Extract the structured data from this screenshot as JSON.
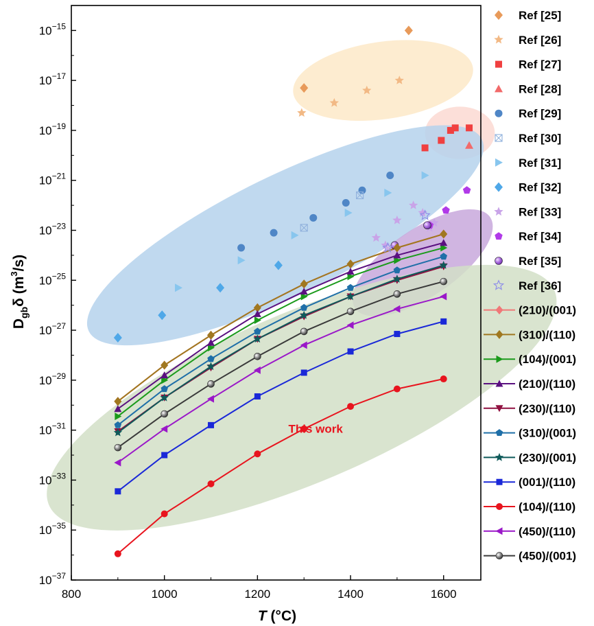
{
  "chart_data": {
    "type": "scatter",
    "title": "",
    "xlabel_italic": "T",
    "xlabel_rest": " (°C)",
    "ylabel_main": "D",
    "ylabel_sub": "gb",
    "ylabel_delta": "δ (m",
    "ylabel_sup": "3",
    "ylabel_end": "/s)",
    "xlim": [
      800,
      1680
    ],
    "ylim_log10": [
      -37,
      -14
    ],
    "xticks": [
      800,
      1000,
      1200,
      1400,
      1600
    ],
    "yticks": [
      {
        "base": "10",
        "exp": "−15",
        "value": -15
      },
      {
        "base": "10",
        "exp": "−17",
        "value": -17
      },
      {
        "base": "10",
        "exp": "−19",
        "value": -19
      },
      {
        "base": "10",
        "exp": "−21",
        "value": -21
      },
      {
        "base": "10",
        "exp": "−23",
        "value": -23
      },
      {
        "base": "10",
        "exp": "−25",
        "value": -25
      },
      {
        "base": "10",
        "exp": "−27",
        "value": -27
      },
      {
        "base": "10",
        "exp": "−29",
        "value": -29
      },
      {
        "base": "10",
        "exp": "−31",
        "value": -31
      },
      {
        "base": "10",
        "exp": "−33",
        "value": -33
      },
      {
        "base": "10",
        "exp": "−35",
        "value": -35
      },
      {
        "base": "10",
        "exp": "−37",
        "value": -37
      }
    ],
    "annotation": {
      "text": "This work",
      "x": 1325,
      "y": -31.1,
      "color": "#e8141e"
    },
    "ellipses": [
      {
        "name": "orange-region",
        "cx": 1470,
        "cy": -17.0,
        "rx": 195,
        "ry": 1.55,
        "rot_deg": -8,
        "color": "#fde9c8"
      },
      {
        "name": "pink-region",
        "cx": 1635,
        "cy": -19.1,
        "rx": 75,
        "ry": 1.05,
        "rot_deg": 0,
        "color": "#fbd9d2"
      },
      {
        "name": "blue-region",
        "cx": 1260,
        "cy": -23.2,
        "rx": 470,
        "ry": 2.4,
        "rot_deg": -26,
        "color": "#b5d2ec"
      },
      {
        "name": "purple-region",
        "cx": 1555,
        "cy": -24.3,
        "rx": 175,
        "ry": 1.35,
        "rot_deg": -34,
        "color": "#c8a8dc"
      },
      {
        "name": "green-region",
        "cx": 1295,
        "cy": -29.7,
        "rx": 590,
        "ry": 3.4,
        "rot_deg": -23,
        "color": "#d2dfc7"
      }
    ],
    "ref_series": [
      {
        "name": "Ref [25]",
        "marker": "diamond",
        "color": "#e89a5a",
        "points": [
          [
            1300,
            -17.3
          ],
          [
            1525,
            -15.0
          ]
        ]
      },
      {
        "name": "Ref [26]",
        "marker": "star",
        "color": "#f2b985",
        "points": [
          [
            1295,
            -18.3
          ],
          [
            1365,
            -17.9
          ],
          [
            1435,
            -17.4
          ],
          [
            1505,
            -17.0
          ]
        ]
      },
      {
        "name": "Ref [27]",
        "marker": "square",
        "color": "#f04040",
        "points": [
          [
            1560,
            -19.7
          ],
          [
            1595,
            -19.4
          ],
          [
            1615,
            -19.0
          ],
          [
            1625,
            -18.9
          ],
          [
            1655,
            -18.9
          ]
        ]
      },
      {
        "name": "Ref [28]",
        "marker": "triangle-up",
        "color": "#f26a6a",
        "points": [
          [
            1655,
            -19.6
          ]
        ]
      },
      {
        "name": "Ref [29]",
        "marker": "circle",
        "color": "#4f86c6",
        "points": [
          [
            1165,
            -23.7
          ],
          [
            1235,
            -23.1
          ],
          [
            1320,
            -22.5
          ],
          [
            1390,
            -21.9
          ],
          [
            1425,
            -21.4
          ],
          [
            1485,
            -20.8
          ]
        ]
      },
      {
        "name": "Ref [30]",
        "marker": "crossed-square",
        "color": "#8fb0dc",
        "points": [
          [
            1300,
            -22.9
          ],
          [
            1420,
            -21.6
          ]
        ]
      },
      {
        "name": "Ref [31]",
        "marker": "triangle-right",
        "color": "#88c6ee",
        "points": [
          [
            1030,
            -25.3
          ],
          [
            1165,
            -24.2
          ],
          [
            1280,
            -23.2
          ],
          [
            1395,
            -22.3
          ],
          [
            1480,
            -21.5
          ],
          [
            1560,
            -20.8
          ]
        ]
      },
      {
        "name": "Ref [32]",
        "marker": "diamond",
        "color": "#4fa8e8",
        "points": [
          [
            900,
            -27.3
          ],
          [
            995,
            -26.4
          ],
          [
            1120,
            -25.3
          ],
          [
            1245,
            -24.4
          ]
        ]
      },
      {
        "name": "Ref [33]",
        "marker": "star",
        "color": "#c9a4e8",
        "points": [
          [
            1455,
            -23.3
          ],
          [
            1475,
            -23.6
          ],
          [
            1500,
            -22.6
          ],
          [
            1535,
            -22.0
          ],
          [
            1555,
            -22.3
          ],
          [
            1570,
            -22.9
          ],
          [
            1580,
            -22.7
          ]
        ]
      },
      {
        "name": "Ref [34]",
        "marker": "pentagon",
        "color": "#b13ae8",
        "points": [
          [
            1570,
            -22.8
          ],
          [
            1605,
            -22.2
          ],
          [
            1650,
            -21.4
          ]
        ]
      },
      {
        "name": "Ref [35]",
        "marker": "sphere",
        "color": "#9a5ad6",
        "points": [
          [
            1495,
            -23.6
          ],
          [
            1565,
            -22.8
          ]
        ]
      },
      {
        "name": "Ref [36]",
        "marker": "star-outline",
        "color": "#8f8fe8",
        "points": [
          [
            1480,
            -23.7
          ],
          [
            1560,
            -22.4
          ]
        ]
      }
    ],
    "x": [
      900,
      1000,
      1100,
      1200,
      1300,
      1400,
      1500,
      1600
    ],
    "series": [
      {
        "name": "(210)/(001)",
        "marker": "diamond",
        "color": "#f07878",
        "values": [
          -29.85,
          -28.4,
          -27.2,
          -26.1,
          -25.15,
          -24.35,
          -23.7,
          -23.15
        ]
      },
      {
        "name": "(310)/(110)",
        "marker": "diamond",
        "color": "#a07820",
        "values": [
          -29.85,
          -28.4,
          -27.2,
          -26.1,
          -25.15,
          -24.35,
          -23.7,
          -23.15
        ]
      },
      {
        "name": "(104)/(001)",
        "marker": "triangle-right",
        "color": "#1a9a1a",
        "values": [
          -30.45,
          -29.0,
          -27.7,
          -26.6,
          -25.65,
          -24.85,
          -24.2,
          -23.7
        ]
      },
      {
        "name": "(210)/(110)",
        "marker": "triangle-up",
        "color": "#5a1080",
        "values": [
          -30.15,
          -28.8,
          -27.5,
          -26.35,
          -25.45,
          -24.65,
          -24.0,
          -23.5
        ]
      },
      {
        "name": "(230)/(110)",
        "marker": "triangle-down",
        "color": "#901040",
        "values": [
          -31.05,
          -29.7,
          -28.5,
          -27.35,
          -26.45,
          -25.65,
          -25.0,
          -24.45
        ]
      },
      {
        "name": "(310)/(001)",
        "marker": "pentagon",
        "color": "#1f6fa8",
        "values": [
          -30.8,
          -29.35,
          -28.15,
          -27.05,
          -26.1,
          -25.3,
          -24.6,
          -24.05
        ]
      },
      {
        "name": "(230)/(001)",
        "marker": "star",
        "color": "#0f5a5a",
        "values": [
          -31.1,
          -29.7,
          -28.45,
          -27.35,
          -26.4,
          -25.65,
          -24.95,
          -24.4
        ]
      },
      {
        "name": "(001)/(110)",
        "marker": "square",
        "color": "#1a28d8",
        "values": [
          -33.45,
          -32.0,
          -30.8,
          -29.65,
          -28.7,
          -27.85,
          -27.15,
          -26.65
        ]
      },
      {
        "name": "(104)/(110)",
        "marker": "circle",
        "color": "#e8141e",
        "values": [
          -35.95,
          -34.35,
          -33.15,
          -31.95,
          -30.95,
          -30.05,
          -29.35,
          -28.95
        ]
      },
      {
        "name": "(450)/(110)",
        "marker": "triangle-left",
        "color": "#9a18c8",
        "values": [
          -32.3,
          -30.95,
          -29.75,
          -28.6,
          -27.6,
          -26.8,
          -26.15,
          -25.65
        ]
      },
      {
        "name": "(450)/(001)",
        "marker": "sphere",
        "color": "#3a3a3a",
        "values": [
          -31.7,
          -30.35,
          -29.15,
          -28.05,
          -27.05,
          -26.25,
          -25.55,
          -25.05
        ]
      }
    ]
  }
}
